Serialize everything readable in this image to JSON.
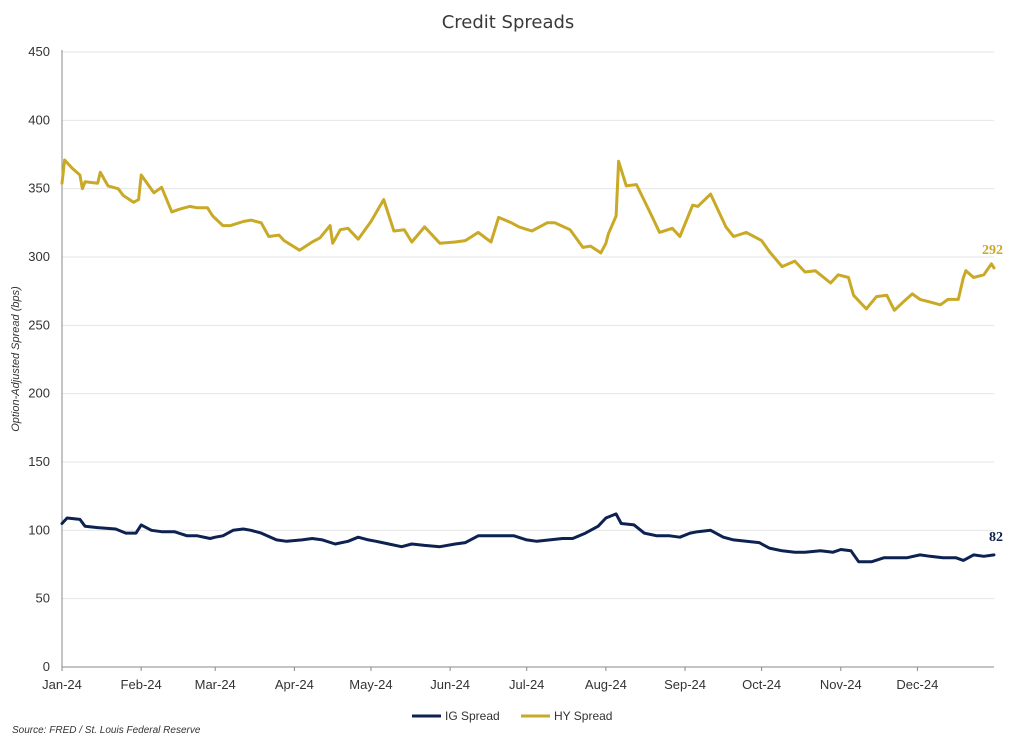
{
  "chart_data": {
    "type": "line",
    "title": "Credit Spreads",
    "xlabel": "",
    "ylabel": "Option-Adjusted Spread (bps)",
    "ylim": [
      0,
      450
    ],
    "yticks": [
      0,
      50,
      100,
      150,
      200,
      250,
      300,
      350,
      400,
      450
    ],
    "xtick_labels": [
      "Jan-24",
      "Feb-24",
      "Mar-24",
      "Apr-24",
      "May-24",
      "Jun-24",
      "Jul-24",
      "Aug-24",
      "Sep-24",
      "Oct-24",
      "Nov-24",
      "Dec-24"
    ],
    "grid": true,
    "legend_position": "bottom",
    "source": "Source: FRED / St. Louis Federal Reserve",
    "series": [
      {
        "name": "IG Spread",
        "color": "#0d2251",
        "end_label": "82",
        "x": [
          "2024-01-01",
          "2024-01-03",
          "2024-01-08",
          "2024-01-10",
          "2024-01-15",
          "2024-01-22",
          "2024-01-26",
          "2024-01-30",
          "2024-02-01",
          "2024-02-05",
          "2024-02-09",
          "2024-02-14",
          "2024-02-19",
          "2024-02-23",
          "2024-02-28",
          "2024-03-01",
          "2024-03-04",
          "2024-03-08",
          "2024-03-12",
          "2024-03-15",
          "2024-03-19",
          "2024-03-25",
          "2024-03-29",
          "2024-04-04",
          "2024-04-08",
          "2024-04-12",
          "2024-04-17",
          "2024-04-22",
          "2024-04-26",
          "2024-04-30",
          "2024-05-03",
          "2024-05-08",
          "2024-05-13",
          "2024-05-17",
          "2024-05-22",
          "2024-05-28",
          "2024-06-03",
          "2024-06-07",
          "2024-06-12",
          "2024-06-17",
          "2024-06-21",
          "2024-06-26",
          "2024-07-01",
          "2024-07-05",
          "2024-07-10",
          "2024-07-15",
          "2024-07-19",
          "2024-07-24",
          "2024-07-29",
          "2024-08-01",
          "2024-08-05",
          "2024-08-07",
          "2024-08-12",
          "2024-08-16",
          "2024-08-21",
          "2024-08-26",
          "2024-08-30",
          "2024-09-03",
          "2024-09-06",
          "2024-09-11",
          "2024-09-16",
          "2024-09-20",
          "2024-09-25",
          "2024-09-30",
          "2024-10-04",
          "2024-10-09",
          "2024-10-14",
          "2024-10-18",
          "2024-10-24",
          "2024-10-29",
          "2024-11-01",
          "2024-11-05",
          "2024-11-08",
          "2024-11-13",
          "2024-11-18",
          "2024-11-22",
          "2024-11-27",
          "2024-12-02",
          "2024-12-06",
          "2024-12-11",
          "2024-12-16",
          "2024-12-19",
          "2024-12-23",
          "2024-12-27",
          "2024-12-31"
        ],
        "values": [
          105,
          109,
          108,
          103,
          102,
          101,
          98,
          98,
          104,
          100,
          99,
          99,
          96,
          96,
          94,
          95,
          96,
          100,
          101,
          100,
          98,
          93,
          92,
          93,
          94,
          93,
          90,
          92,
          95,
          93,
          92,
          90,
          88,
          90,
          89,
          88,
          90,
          91,
          96,
          96,
          96,
          96,
          93,
          92,
          93,
          94,
          94,
          98,
          103,
          109,
          112,
          105,
          104,
          98,
          96,
          96,
          95,
          98,
          99,
          100,
          95,
          93,
          92,
          91,
          87,
          85,
          84,
          84,
          85,
          84,
          86,
          85,
          77,
          77,
          80,
          80,
          80,
          82,
          81,
          80,
          80,
          78,
          82,
          81,
          82
        ]
      },
      {
        "name": "HY Spread",
        "color": "#c9a926",
        "end_label": "292",
        "x": [
          "2024-01-01",
          "2024-01-02",
          "2024-01-05",
          "2024-01-08",
          "2024-01-09",
          "2024-01-10",
          "2024-01-15",
          "2024-01-16",
          "2024-01-19",
          "2024-01-23",
          "2024-01-25",
          "2024-01-29",
          "2024-01-31",
          "2024-02-01",
          "2024-02-06",
          "2024-02-09",
          "2024-02-13",
          "2024-02-16",
          "2024-02-20",
          "2024-02-23",
          "2024-02-27",
          "2024-02-29",
          "2024-03-04",
          "2024-03-07",
          "2024-03-12",
          "2024-03-15",
          "2024-03-19",
          "2024-03-22",
          "2024-03-26",
          "2024-03-28",
          "2024-04-03",
          "2024-04-08",
          "2024-04-11",
          "2024-04-15",
          "2024-04-16",
          "2024-04-19",
          "2024-04-22",
          "2024-04-26",
          "2024-05-01",
          "2024-05-06",
          "2024-05-10",
          "2024-05-14",
          "2024-05-17",
          "2024-05-22",
          "2024-05-28",
          "2024-06-03",
          "2024-06-07",
          "2024-06-12",
          "2024-06-17",
          "2024-06-20",
          "2024-06-25",
          "2024-06-28",
          "2024-07-03",
          "2024-07-09",
          "2024-07-12",
          "2024-07-18",
          "2024-07-23",
          "2024-07-26",
          "2024-07-30",
          "2024-08-01",
          "2024-08-02",
          "2024-08-05",
          "2024-08-06",
          "2024-08-09",
          "2024-08-13",
          "2024-08-19",
          "2024-08-22",
          "2024-08-27",
          "2024-08-30",
          "2024-09-04",
          "2024-09-06",
          "2024-09-11",
          "2024-09-17",
          "2024-09-20",
          "2024-09-25",
          "2024-10-01",
          "2024-10-04",
          "2024-10-09",
          "2024-10-14",
          "2024-10-18",
          "2024-10-22",
          "2024-10-28",
          "2024-10-31",
          "2024-11-04",
          "2024-11-06",
          "2024-11-11",
          "2024-11-15",
          "2024-11-19",
          "2024-11-22",
          "2024-11-26",
          "2024-11-29",
          "2024-12-02",
          "2024-12-06",
          "2024-12-10",
          "2024-12-13",
          "2024-12-17",
          "2024-12-19",
          "2024-12-20",
          "2024-12-23",
          "2024-12-27",
          "2024-12-30",
          "2024-12-31"
        ],
        "values": [
          354,
          371,
          365,
          360,
          350,
          355,
          354,
          362,
          352,
          350,
          345,
          340,
          342,
          360,
          347,
          351,
          333,
          335,
          337,
          336,
          336,
          330,
          323,
          323,
          326,
          327,
          325,
          315,
          316,
          312,
          305,
          311,
          314,
          323,
          310,
          320,
          321,
          313,
          326,
          342,
          319,
          320,
          311,
          322,
          310,
          311,
          312,
          318,
          311,
          329,
          325,
          322,
          319,
          325,
          325,
          320,
          307,
          308,
          303,
          310,
          317,
          330,
          370,
          352,
          353,
          330,
          318,
          321,
          315,
          338,
          337,
          346,
          322,
          315,
          318,
          312,
          304,
          293,
          297,
          289,
          290,
          281,
          287,
          285,
          272,
          262,
          271,
          272,
          261,
          268,
          273,
          269,
          267,
          265,
          269,
          269,
          285,
          290,
          285,
          287,
          295,
          292
        ]
      }
    ]
  }
}
